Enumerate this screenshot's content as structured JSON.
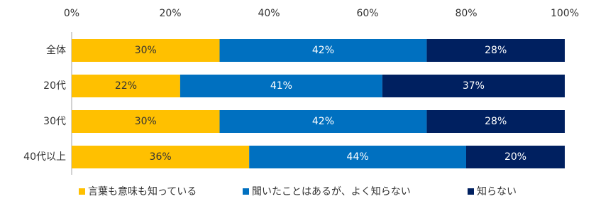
{
  "chart_data": {
    "type": "bar",
    "orientation": "horizontal",
    "stacked": true,
    "grid": false,
    "categories": [
      "全体",
      "20代",
      "30代",
      "40代以上"
    ],
    "series": [
      {
        "name": "言葉も意味も知っている",
        "color": "#FFC000",
        "values": [
          30,
          22,
          30,
          36
        ],
        "value_labels": [
          "30%",
          "22%",
          "30%",
          "36%"
        ]
      },
      {
        "name": "聞いたことはあるが、よく知らない",
        "color": "#0070C0",
        "values": [
          42,
          41,
          42,
          44
        ],
        "value_labels": [
          "42%",
          "41%",
          "42%",
          "44%"
        ]
      },
      {
        "name": "知らない",
        "color": "#002060",
        "values": [
          28,
          37,
          28,
          20
        ],
        "value_labels": [
          "28%",
          "37%",
          "28%",
          "20%"
        ]
      }
    ],
    "xlim": [
      0,
      100
    ],
    "xticks": [
      {
        "value": 0,
        "label": "0%"
      },
      {
        "value": 20,
        "label": "20%"
      },
      {
        "value": 40,
        "label": "40%"
      },
      {
        "value": 60,
        "label": "60%"
      },
      {
        "value": 80,
        "label": "80%"
      },
      {
        "value": 100,
        "label": "100%"
      }
    ],
    "legend": "bottom"
  }
}
